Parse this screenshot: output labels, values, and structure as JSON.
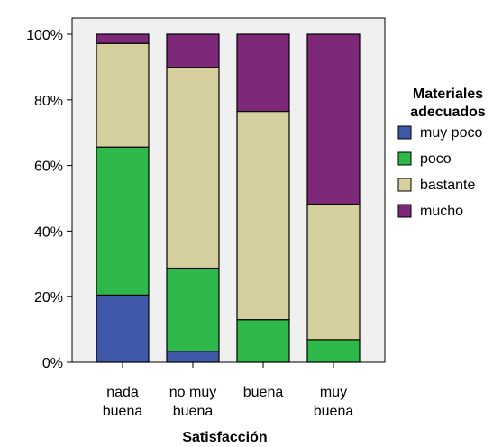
{
  "chart_data": {
    "type": "bar",
    "stacked": true,
    "percent": true,
    "categories": [
      [
        "nada",
        "buena"
      ],
      [
        "no muy",
        "buena"
      ],
      [
        "buena"
      ],
      [
        "muy",
        "buena"
      ]
    ],
    "series": [
      {
        "name": "muy poco",
        "color": "#3f58a8",
        "values": [
          20.5,
          3.4,
          0,
          0
        ]
      },
      {
        "name": "poco",
        "color": "#2fb84a",
        "values": [
          45.1,
          25.3,
          13.0,
          6.9
        ]
      },
      {
        "name": "bastante",
        "color": "#d4cf9c",
        "values": [
          31.6,
          61.2,
          63.5,
          41.3
        ]
      },
      {
        "name": "mucho",
        "color": "#7d2878",
        "values": [
          2.8,
          10.1,
          23.5,
          51.8
        ]
      }
    ],
    "xlabel": "Satisfacción",
    "ylabel": "",
    "ylim": [
      0,
      100
    ],
    "yticks": [
      "0%",
      "20%",
      "40%",
      "60%",
      "80%",
      "100%"
    ],
    "legend": {
      "title": [
        "Materiales",
        "adecuados"
      ],
      "placement": "right"
    },
    "grid": false,
    "plot_background": "#f0f0f0"
  }
}
